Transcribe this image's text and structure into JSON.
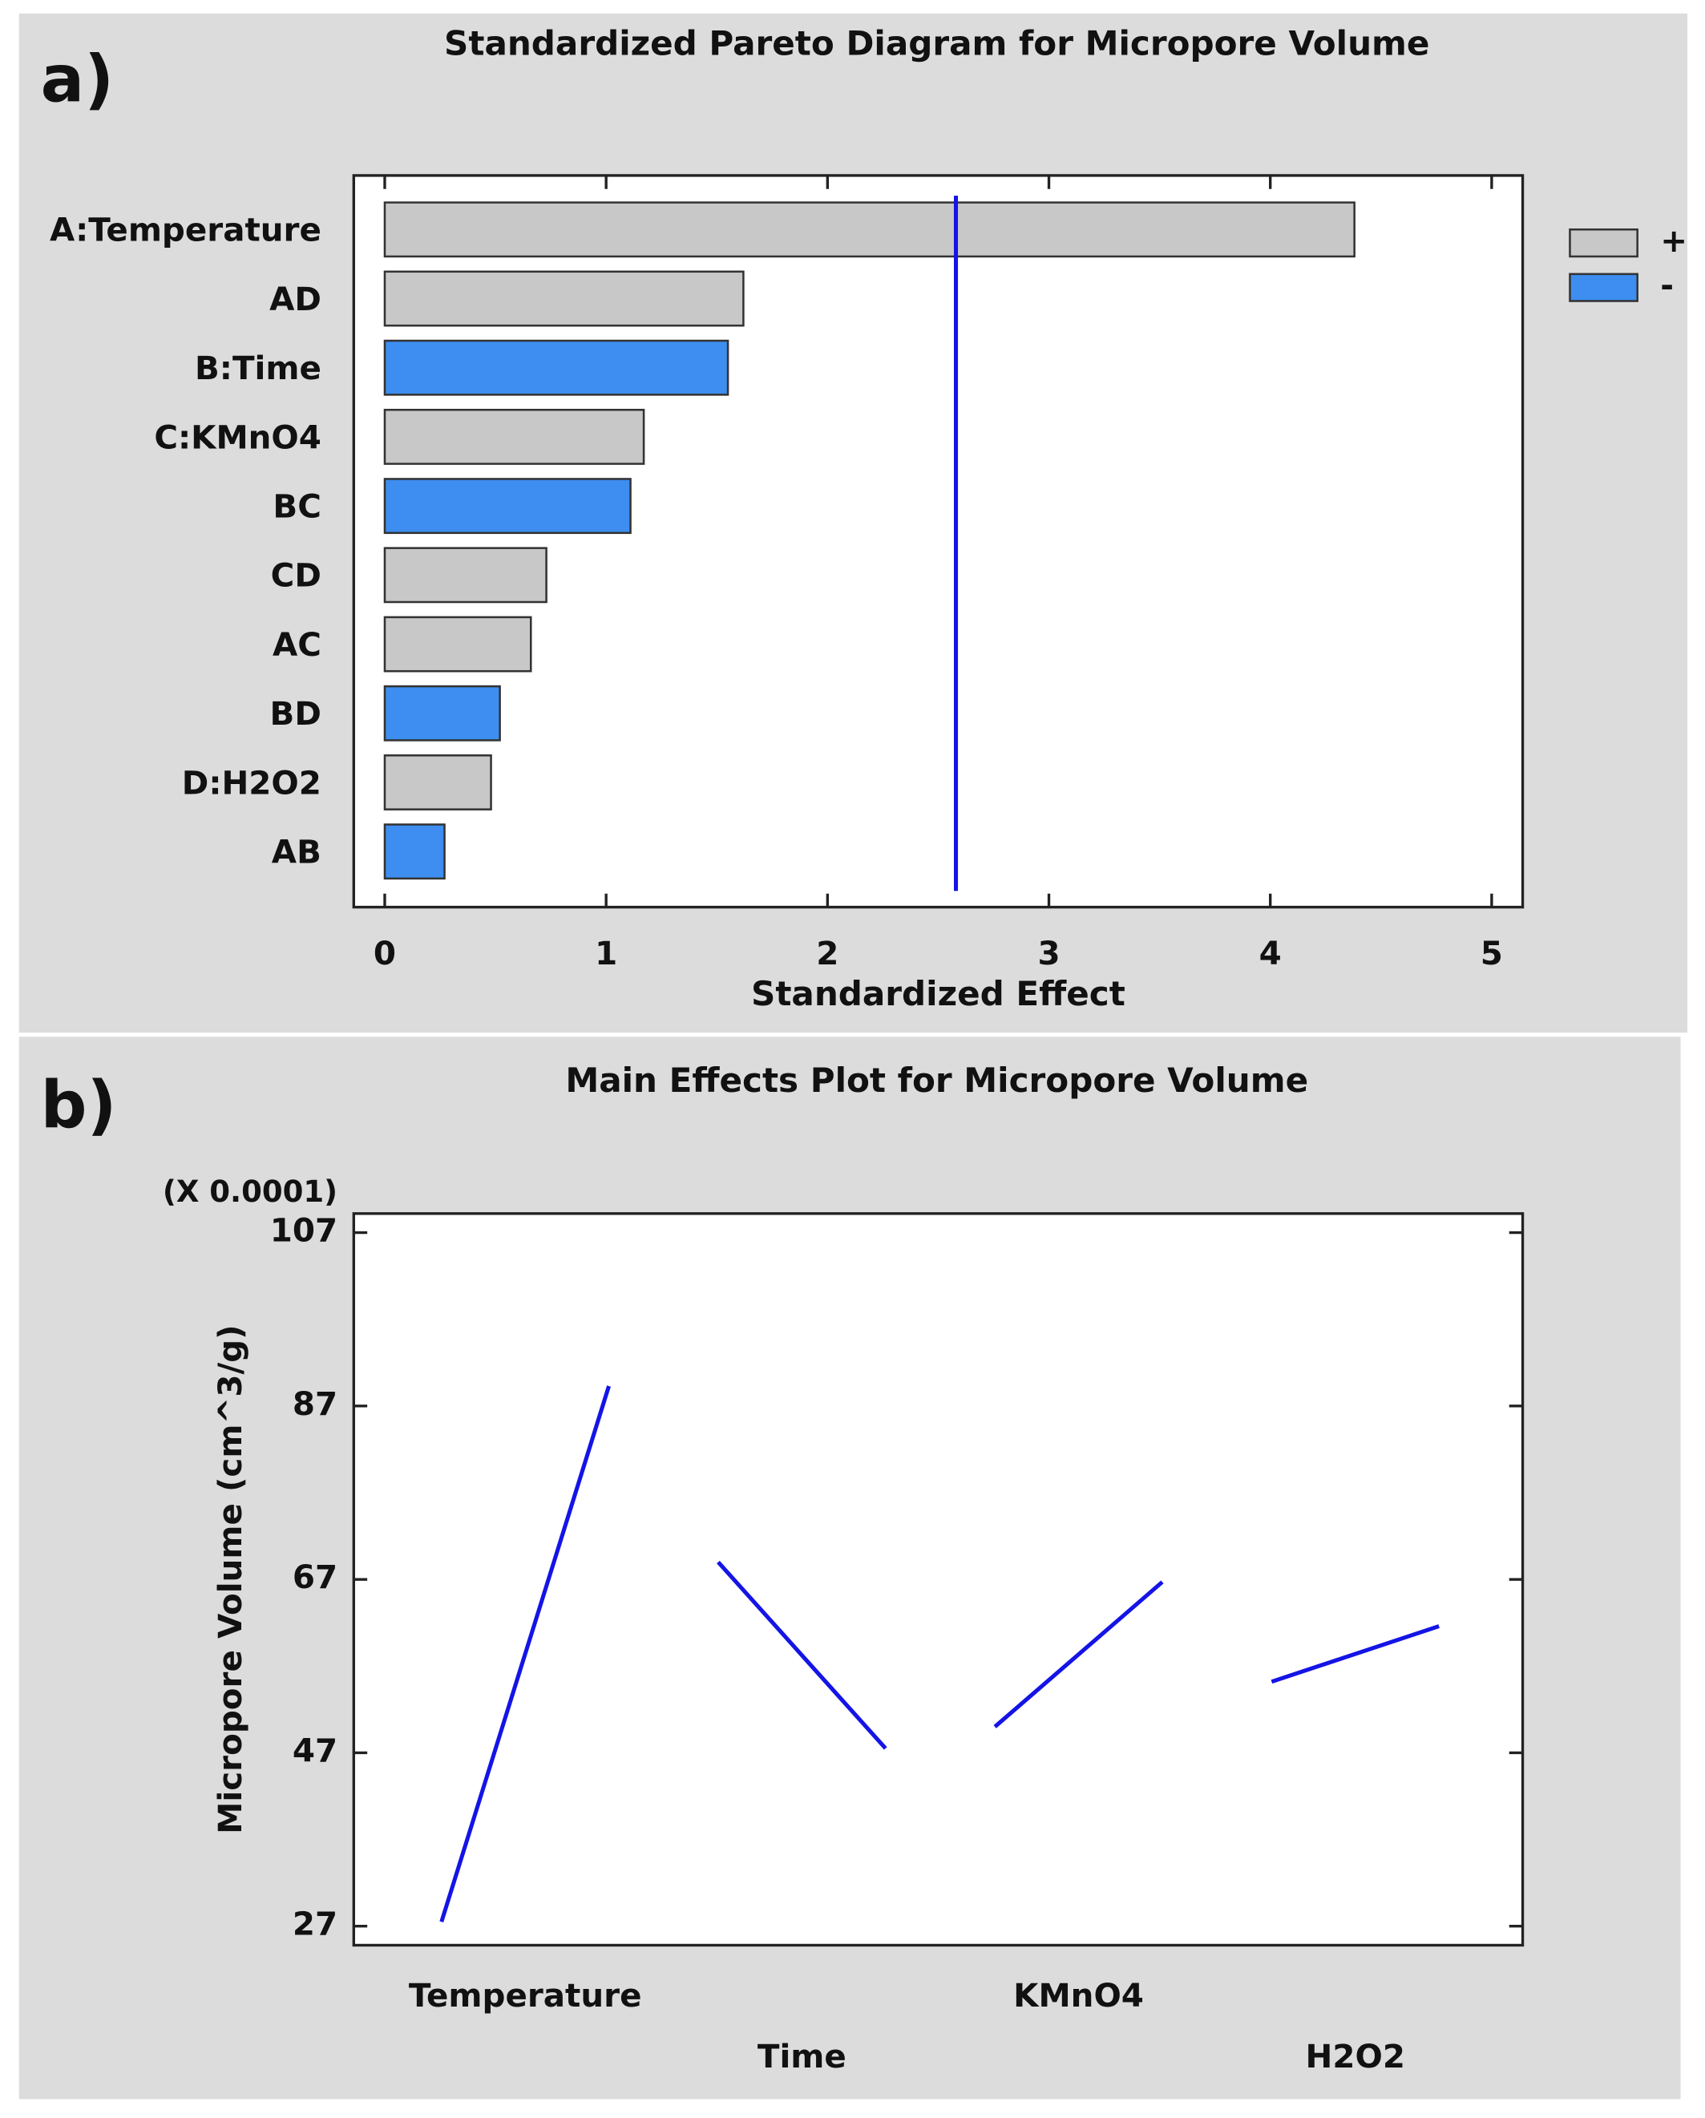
{
  "chart_data": [
    {
      "type": "barh",
      "panel_label": "a)",
      "title": "Standardized Pareto Diagram for Micropore Volume",
      "xlabel": "Standardized Effect",
      "categories": [
        "A:Temperature",
        "AD",
        "B:Time",
        "C:KMnO4",
        "BC",
        "CD",
        "AC",
        "BD",
        "D:H2O2",
        "AB"
      ],
      "series": [
        {
          "name": "+",
          "color": "#c8c8c8",
          "values": [
            4.38,
            1.62,
            null,
            1.17,
            null,
            0.73,
            0.66,
            null,
            0.48,
            null
          ]
        },
        {
          "name": "-",
          "color": "#3d8ef0",
          "values": [
            null,
            null,
            1.55,
            null,
            1.11,
            null,
            null,
            0.52,
            null,
            0.27
          ]
        }
      ],
      "reference_line": 2.58,
      "reference_color": "#1414e6",
      "xlim": [
        -0.14,
        5.14
      ],
      "xticks": [
        0,
        1,
        2,
        3,
        4,
        5
      ],
      "legend": "right"
    },
    {
      "type": "main-effects",
      "panel_label": "b)",
      "title": "Main Effects Plot for Micropore Volume",
      "ylabel": "Micropore Volume (cm^3/g)",
      "y_multiplier": "(X 0.0001)",
      "series": [
        {
          "name": "Temperature",
          "color": "#1414e6",
          "values": [
            27.5,
            89.3
          ]
        },
        {
          "name": "Time",
          "color": "#1414e6",
          "values": [
            69.0,
            47.5
          ]
        },
        {
          "name": "KMnO4",
          "color": "#1414e6",
          "values": [
            50.0,
            66.7
          ]
        },
        {
          "name": "H2O2",
          "color": "#1414e6",
          "values": [
            55.2,
            61.6
          ]
        }
      ],
      "ylim": [
        24.8,
        109.2
      ],
      "yticks": [
        27,
        47,
        67,
        87,
        107
      ]
    }
  ]
}
